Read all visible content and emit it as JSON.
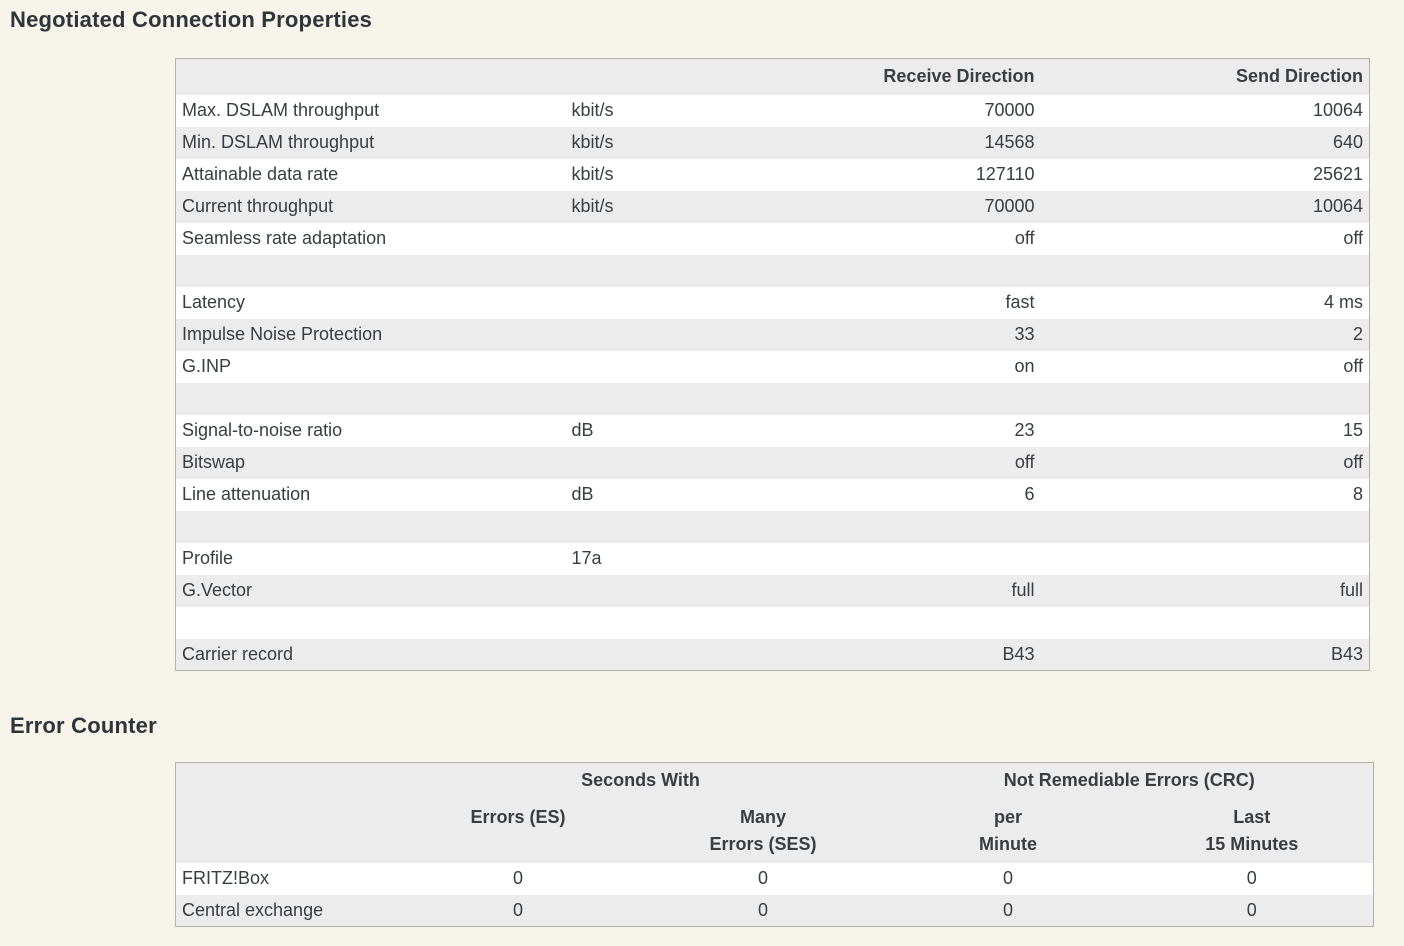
{
  "page": {
    "background_color": "#f7f5eb",
    "table_alt_row_color": "#ececec",
    "table_border_color": "#b3b2a9",
    "text_color": "#383d42",
    "heading_color": "#2e343a"
  },
  "connection_section": {
    "title": "Negotiated Connection Properties",
    "table": {
      "headers": {
        "receive": "Receive Direction",
        "send": "Send Direction"
      },
      "rows": [
        {
          "label": "Max. DSLAM throughput",
          "unit": "kbit/s",
          "receive": "70000",
          "send": "10064"
        },
        {
          "label": "Min. DSLAM throughput",
          "unit": "kbit/s",
          "receive": "14568",
          "send": "640"
        },
        {
          "label": "Attainable data rate",
          "unit": "kbit/s",
          "receive": "127110",
          "send": "25621"
        },
        {
          "label": "Current throughput",
          "unit": "kbit/s",
          "receive": "70000",
          "send": "10064"
        },
        {
          "label": "Seamless rate adaptation",
          "unit": "",
          "receive": "off",
          "send": "off"
        },
        {
          "label": "",
          "unit": "",
          "receive": "",
          "send": ""
        },
        {
          "label": "Latency",
          "unit": "",
          "receive": "fast",
          "send": "4 ms"
        },
        {
          "label": "Impulse Noise Protection",
          "unit": "",
          "receive": "33",
          "send": "2"
        },
        {
          "label": "G.INP",
          "unit": "",
          "receive": "on",
          "send": "off"
        },
        {
          "label": "",
          "unit": "",
          "receive": "",
          "send": ""
        },
        {
          "label": "Signal-to-noise ratio",
          "unit": "dB",
          "receive": "23",
          "send": "15"
        },
        {
          "label": "Bitswap",
          "unit": "",
          "receive": "off",
          "send": "off"
        },
        {
          "label": "Line attenuation",
          "unit": "dB",
          "receive": "6",
          "send": "8"
        },
        {
          "label": "",
          "unit": "",
          "receive": "",
          "send": ""
        },
        {
          "label": "Profile",
          "unit": "17a",
          "receive": "",
          "send": ""
        },
        {
          "label": "G.Vector",
          "unit": "",
          "receive": "full",
          "send": "full"
        },
        {
          "label": "",
          "unit": "",
          "receive": "",
          "send": ""
        },
        {
          "label": "Carrier record",
          "unit": "",
          "receive": "B43",
          "send": "B43"
        }
      ]
    }
  },
  "error_section": {
    "title": "Error Counter",
    "table": {
      "group_headers": {
        "seconds_with": "Seconds With",
        "crc": "Not Remediable Errors (CRC)"
      },
      "col_headers": {
        "es": "Errors (ES)",
        "ses_line1": "Many",
        "ses_line2": "Errors (SES)",
        "per_minute_line1": "per",
        "per_minute_line2": "Minute",
        "last15_line1": "Last",
        "last15_line2": "15 Minutes"
      },
      "rows": [
        {
          "label": "FRITZ!Box",
          "es": "0",
          "ses": "0",
          "per_minute": "0",
          "last_15": "0"
        },
        {
          "label": "Central exchange",
          "es": "0",
          "ses": "0",
          "per_minute": "0",
          "last_15": "0"
        }
      ]
    }
  }
}
